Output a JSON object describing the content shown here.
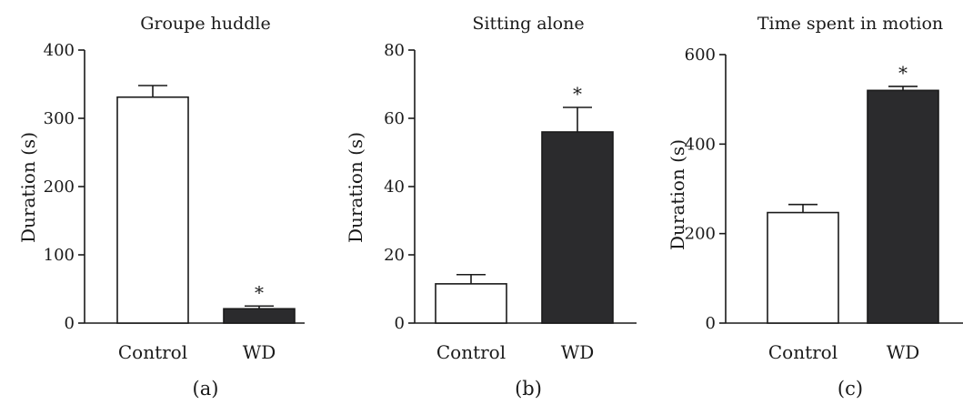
{
  "chart_data": [
    {
      "type": "bar",
      "panel": "(a)",
      "title": "Groupe huddle",
      "ylabel": "Duration (s)",
      "xlabel": "",
      "categories": [
        "Control",
        "WD"
      ],
      "values": [
        331,
        21
      ],
      "errors": [
        17,
        4
      ],
      "significance": [
        "",
        "*"
      ],
      "ylim": [
        0,
        400
      ],
      "yticks": [
        0,
        100,
        200,
        300,
        400
      ],
      "colors": [
        "#ffffff",
        "#2b2b2d"
      ]
    },
    {
      "type": "bar",
      "panel": "(b)",
      "title": "Sitting alone",
      "ylabel": "Duration (s)",
      "xlabel": "",
      "categories": [
        "Control",
        "WD"
      ],
      "values": [
        11.5,
        56
      ],
      "errors": [
        2.7,
        7.2
      ],
      "significance": [
        "",
        "*"
      ],
      "ylim": [
        0,
        80
      ],
      "yticks": [
        0,
        20,
        40,
        60,
        80
      ],
      "colors": [
        "#ffffff",
        "#2b2b2d"
      ]
    },
    {
      "type": "bar",
      "panel": "(c)",
      "title": "Time spent in motion",
      "ylabel": "Duration (s)",
      "xlabel": "",
      "categories": [
        "Control",
        "WD"
      ],
      "values": [
        247,
        520
      ],
      "errors": [
        18,
        9
      ],
      "significance": [
        "",
        "*"
      ],
      "ylim": [
        0,
        600
      ],
      "yticks": [
        0,
        200,
        400,
        600
      ],
      "colors": [
        "#ffffff",
        "#2b2b2d"
      ]
    }
  ]
}
